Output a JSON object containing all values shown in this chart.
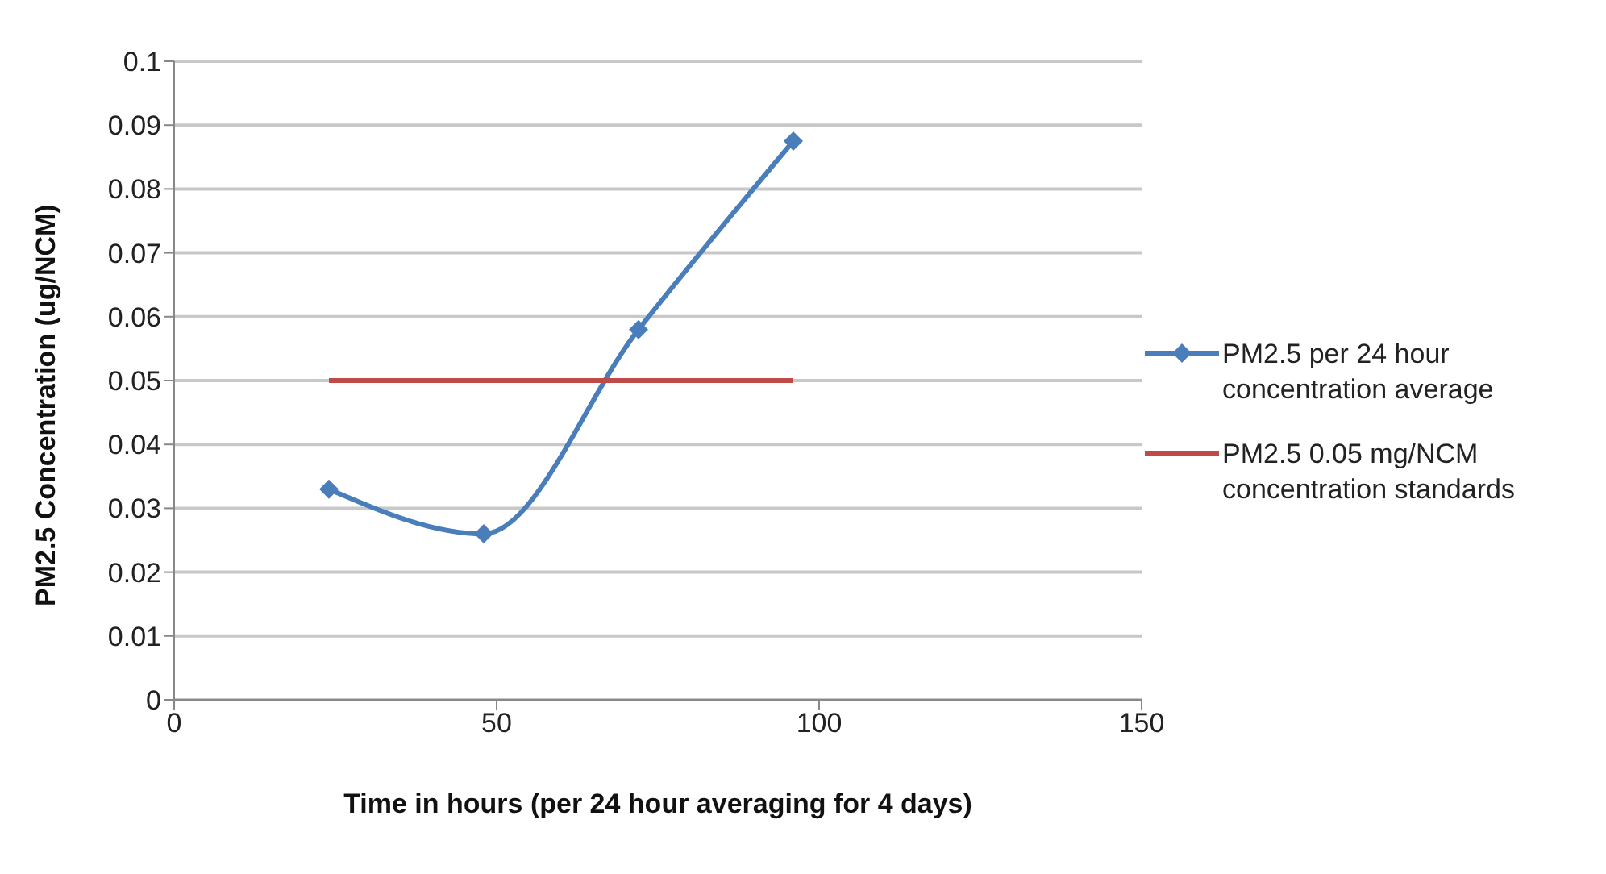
{
  "chart_data": {
    "type": "line",
    "xlabel": "Time in hours (per 24 hour averaging for 4 days)",
    "ylabel": "PM2.5 Concentration (ug/NCM)",
    "x": [
      24,
      48,
      72,
      96
    ],
    "series": [
      {
        "name": "PM2.5 per 24 hour concentration average",
        "color": "#4a7ebb",
        "values": [
          0.033,
          0.026,
          0.058,
          0.0875
        ],
        "marker": "diamond"
      },
      {
        "name": "PM2.5 0.05 mg/NCM concentration standards",
        "color": "#be4b48",
        "values": [
          0.05,
          0.05,
          0.05,
          0.05
        ],
        "marker": "none"
      }
    ],
    "xlim": [
      0,
      150
    ],
    "xticks": [
      0,
      50,
      100,
      150
    ],
    "ylim": [
      0,
      0.1
    ],
    "yticks": [
      0,
      0.01,
      0.02,
      0.03,
      0.04,
      0.05,
      0.06,
      0.07,
      0.08,
      0.09,
      0.1
    ],
    "grid": "y",
    "legend": "right",
    "line_style": "solid"
  }
}
